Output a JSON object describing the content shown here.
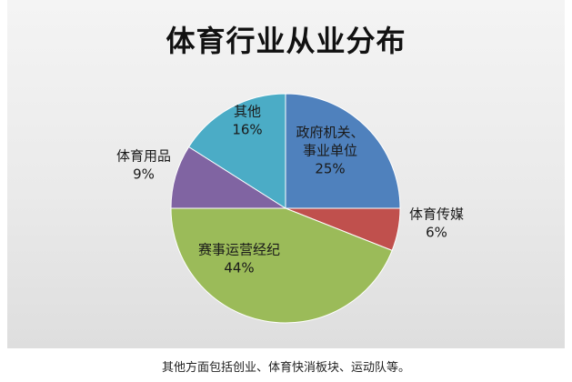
{
  "chart_data": {
    "type": "pie",
    "title": "体育行业从业分布",
    "slices": [
      {
        "label_lines": [
          "政府机关、",
          "事业单位"
        ],
        "value": 25,
        "value_label": "25%",
        "color": "#4f81bd",
        "label_color": "#1a1a1a"
      },
      {
        "label_lines": [
          "体育传媒"
        ],
        "value": 6,
        "value_label": "6%",
        "color": "#c0504d",
        "label_color": "#1a1a1a"
      },
      {
        "label_lines": [
          "赛事运营经纪"
        ],
        "value": 44,
        "value_label": "44%",
        "color": "#9bbb59",
        "label_color": "#1a1a1a"
      },
      {
        "label_lines": [
          "体育用品"
        ],
        "value": 9,
        "value_label": "9%",
        "color": "#8064a2",
        "label_color": "#1a1a1a"
      },
      {
        "label_lines": [
          "其他"
        ],
        "value": 16,
        "value_label": "16%",
        "color": "#4bacc6",
        "label_color": "#1a1a1a"
      }
    ]
  },
  "caption": "其他方面包括创业、体育快消板块、运动队等。"
}
